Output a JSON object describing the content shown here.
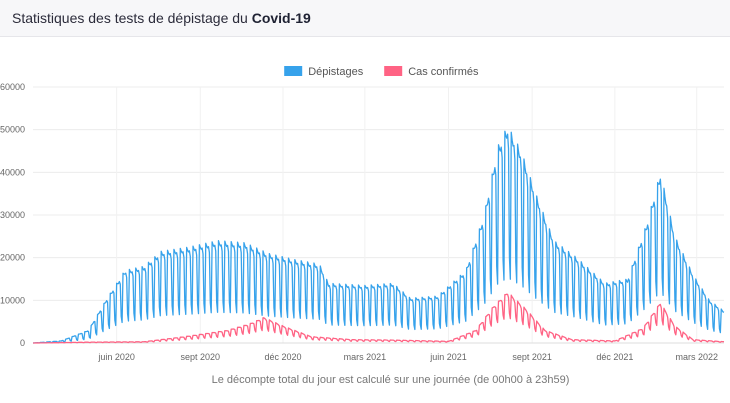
{
  "header": {
    "title_prefix": "Statistiques des tests de dépistage du ",
    "title_bold": "Covid-19"
  },
  "chart_data": {
    "type": "line",
    "caption": "Le décompte total du jour est calculé sur une journée (de 00h00 à 23h59)",
    "ylim": [
      0,
      60000
    ],
    "yticks": [
      0,
      10000,
      20000,
      30000,
      40000,
      50000,
      60000
    ],
    "xticks": [
      {
        "label": "juin 2020",
        "date": "2020-06-01"
      },
      {
        "label": "sept 2020",
        "date": "2020-09-01"
      },
      {
        "label": "déc 2020",
        "date": "2020-12-01"
      },
      {
        "label": "mars 2021",
        "date": "2021-03-01"
      },
      {
        "label": "juin 2021",
        "date": "2021-06-01"
      },
      {
        "label": "sept 2021",
        "date": "2021-09-01"
      },
      {
        "label": "déc 2021",
        "date": "2021-12-01"
      },
      {
        "label": "mars 2022",
        "date": "2022-03-01"
      }
    ],
    "x_range": [
      "2020-03-01",
      "2022-03-31"
    ],
    "legend_position": "top-center",
    "grid": true,
    "series": [
      {
        "name": "Dépistages",
        "color": "#36a2eb",
        "weekly_pattern": [
          1.0,
          0.97,
          0.95,
          0.96,
          0.9,
          0.4,
          0.3
        ],
        "envelope": [
          {
            "date": "2020-03-01",
            "value": 0
          },
          {
            "date": "2020-04-01",
            "value": 500
          },
          {
            "date": "2020-05-01",
            "value": 3000
          },
          {
            "date": "2020-05-20",
            "value": 10000
          },
          {
            "date": "2020-06-10",
            "value": 17000
          },
          {
            "date": "2020-07-01",
            "value": 18000
          },
          {
            "date": "2020-07-20",
            "value": 21500
          },
          {
            "date": "2020-08-20",
            "value": 22500
          },
          {
            "date": "2020-09-20",
            "value": 24000
          },
          {
            "date": "2020-10-20",
            "value": 23500
          },
          {
            "date": "2020-11-15",
            "value": 21000
          },
          {
            "date": "2020-12-15",
            "value": 19500
          },
          {
            "date": "2021-01-10",
            "value": 18500
          },
          {
            "date": "2021-01-20",
            "value": 14000
          },
          {
            "date": "2021-03-01",
            "value": 13500
          },
          {
            "date": "2021-04-01",
            "value": 14000
          },
          {
            "date": "2021-04-20",
            "value": 10500
          },
          {
            "date": "2021-05-20",
            "value": 11000
          },
          {
            "date": "2021-06-20",
            "value": 17000
          },
          {
            "date": "2021-07-10",
            "value": 30000
          },
          {
            "date": "2021-07-25",
            "value": 46000
          },
          {
            "date": "2021-08-05",
            "value": 51000
          },
          {
            "date": "2021-08-20",
            "value": 45000
          },
          {
            "date": "2021-09-05",
            "value": 35000
          },
          {
            "date": "2021-09-25",
            "value": 24000
          },
          {
            "date": "2021-10-20",
            "value": 20000
          },
          {
            "date": "2021-11-20",
            "value": 14000
          },
          {
            "date": "2021-12-15",
            "value": 15000
          },
          {
            "date": "2022-01-05",
            "value": 28000
          },
          {
            "date": "2022-01-20",
            "value": 40000
          },
          {
            "date": "2022-02-05",
            "value": 25000
          },
          {
            "date": "2022-02-25",
            "value": 16000
          },
          {
            "date": "2022-03-15",
            "value": 10000
          },
          {
            "date": "2022-03-31",
            "value": 7500
          }
        ]
      },
      {
        "name": "Cas confirmés",
        "color": "#ff6384",
        "weekly_pattern": [
          1.0,
          0.98,
          0.97,
          0.95,
          0.9,
          0.6,
          0.5
        ],
        "envelope": [
          {
            "date": "2020-03-01",
            "value": 0
          },
          {
            "date": "2020-05-01",
            "value": 200
          },
          {
            "date": "2020-07-01",
            "value": 300
          },
          {
            "date": "2020-08-15",
            "value": 1500
          },
          {
            "date": "2020-10-01",
            "value": 3000
          },
          {
            "date": "2020-10-25",
            "value": 4500
          },
          {
            "date": "2020-11-10",
            "value": 6000
          },
          {
            "date": "2020-12-01",
            "value": 4000
          },
          {
            "date": "2021-01-01",
            "value": 1500
          },
          {
            "date": "2021-02-15",
            "value": 800
          },
          {
            "date": "2021-04-01",
            "value": 700
          },
          {
            "date": "2021-06-01",
            "value": 400
          },
          {
            "date": "2021-07-01",
            "value": 3000
          },
          {
            "date": "2021-07-20",
            "value": 8500
          },
          {
            "date": "2021-08-05",
            "value": 12000
          },
          {
            "date": "2021-08-25",
            "value": 8000
          },
          {
            "date": "2021-09-15",
            "value": 3000
          },
          {
            "date": "2021-10-15",
            "value": 800
          },
          {
            "date": "2021-12-01",
            "value": 500
          },
          {
            "date": "2022-01-01",
            "value": 3500
          },
          {
            "date": "2022-01-20",
            "value": 9500
          },
          {
            "date": "2022-02-05",
            "value": 4000
          },
          {
            "date": "2022-02-25",
            "value": 800
          },
          {
            "date": "2022-03-31",
            "value": 300
          }
        ]
      }
    ]
  }
}
